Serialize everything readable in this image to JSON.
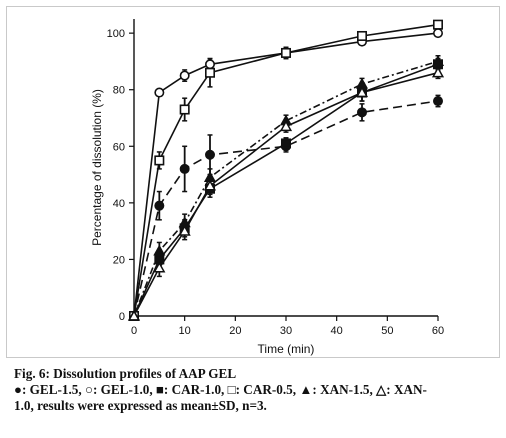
{
  "chart_data": {
    "type": "line",
    "xlabel": "Time (min)",
    "ylabel": "Percentage of dissolution (%)",
    "xlim": [
      0,
      60
    ],
    "ylim": [
      0,
      105
    ],
    "xticks": [
      0,
      10,
      20,
      30,
      40,
      50,
      60
    ],
    "yticks": [
      0,
      20,
      40,
      60,
      80,
      100
    ],
    "x": [
      0,
      5,
      10,
      15,
      30,
      45,
      60
    ],
    "grid": false,
    "series": [
      {
        "name": "GEL-1.5",
        "marker": "filled-circle",
        "dash": "long-dash",
        "values": [
          0,
          39,
          52,
          57,
          60,
          72,
          76
        ],
        "errors": [
          0,
          5,
          8,
          7,
          2,
          3,
          2
        ]
      },
      {
        "name": "GEL-1.0",
        "marker": "open-circle",
        "dash": "solid",
        "values": [
          0,
          79,
          85,
          89,
          93,
          97,
          100
        ],
        "errors": [
          0,
          1,
          2,
          2,
          2,
          1,
          1
        ]
      },
      {
        "name": "CAR-1.0",
        "marker": "filled-square",
        "dash": "solid",
        "values": [
          0,
          20,
          31,
          45,
          61,
          79,
          89
        ],
        "errors": [
          0,
          3,
          3,
          3,
          2,
          3,
          2
        ]
      },
      {
        "name": "CAR-0.5",
        "marker": "open-square",
        "dash": "solid",
        "values": [
          0,
          55,
          73,
          86,
          93,
          99,
          103
        ],
        "errors": [
          0,
          3,
          4,
          5,
          2,
          1,
          1
        ]
      },
      {
        "name": "XAN-1.5",
        "marker": "filled-triangle",
        "dash": "dash-dot",
        "values": [
          0,
          23,
          33,
          49,
          69,
          82,
          90
        ],
        "errors": [
          0,
          3,
          3,
          3,
          2,
          2,
          2
        ]
      },
      {
        "name": "XAN-1.0",
        "marker": "open-triangle",
        "dash": "solid",
        "values": [
          0,
          17,
          30,
          46,
          67,
          79,
          86
        ],
        "errors": [
          0,
          3,
          3,
          3,
          2,
          3,
          2
        ]
      }
    ]
  },
  "caption": {
    "title": "Fig. 6: Dissolution profiles of AAP GEL",
    "line1": "●: GEL-1.5, ○: GEL-1.0, ■: CAR-1.0, □: CAR-0.5, ▲: XAN-1.5, △: XAN-",
    "line2": "1.0, results were expressed as mean±SD, n=3."
  }
}
